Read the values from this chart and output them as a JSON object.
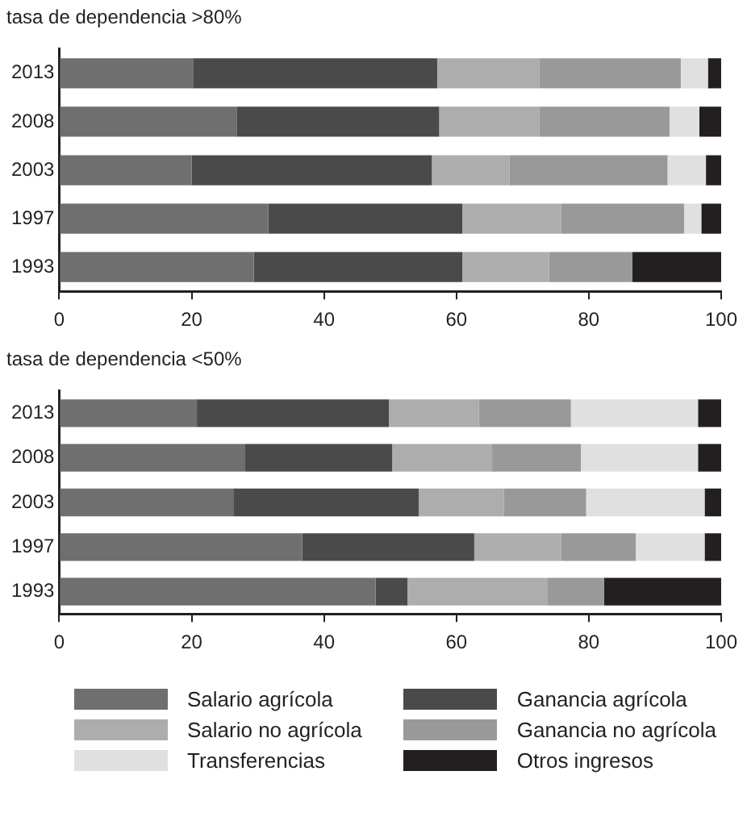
{
  "chart_data": [
    {
      "type": "bar",
      "orientation": "horizontal",
      "stacked": true,
      "title": "tasa de dependencia >80%",
      "categories": [
        "2013",
        "2008",
        "2003",
        "1997",
        "1993"
      ],
      "xlim": [
        0,
        100
      ],
      "xticks": [
        0,
        20,
        40,
        60,
        80,
        100
      ],
      "grid": false,
      "legend": false,
      "series": [
        {
          "color": "#6f6f6f",
          "values": [
            20.3,
            26.8,
            20.0,
            31.6,
            29.4
          ]
        },
        {
          "color": "#4a4a4a",
          "values": [
            36.8,
            30.6,
            36.3,
            29.3,
            31.5
          ]
        },
        {
          "color": "#adadad",
          "values": [
            15.4,
            15.1,
            11.7,
            14.9,
            13.1
          ]
        },
        {
          "color": "#999999",
          "values": [
            21.4,
            19.7,
            23.9,
            18.6,
            12.6
          ]
        },
        {
          "color": "#e0e0e0",
          "values": [
            4.1,
            4.5,
            5.8,
            2.6,
            null
          ]
        },
        {
          "color": "#231f20",
          "values": [
            2.0,
            3.3,
            2.3,
            3.0,
            13.4
          ]
        }
      ]
    },
    {
      "type": "bar",
      "orientation": "horizontal",
      "stacked": true,
      "title": "tasa de dependencia <50%",
      "categories": [
        "2013",
        "2008",
        "2003",
        "1997",
        "1993"
      ],
      "xlim": [
        0,
        100
      ],
      "xticks": [
        0,
        20,
        40,
        60,
        80,
        100
      ],
      "grid": false,
      "legend": "bottom",
      "series": [
        {
          "name": "Salario agrícola",
          "color": "#6f6f6f",
          "values": [
            20.8,
            28.1,
            26.3,
            36.7,
            47.8
          ]
        },
        {
          "name": "Ganancia agrícola",
          "color": "#4a4a4a",
          "values": [
            29.0,
            22.2,
            28.0,
            26.0,
            4.8
          ]
        },
        {
          "name": "Salario no agrícola",
          "color": "#adadad",
          "values": [
            13.6,
            15.1,
            12.9,
            13.1,
            21.2
          ]
        },
        {
          "name": "Ganancia no agrícola",
          "color": "#999999",
          "values": [
            13.9,
            13.4,
            12.4,
            11.3,
            8.5
          ]
        },
        {
          "name": "Transferencias",
          "color": "#e0e0e0",
          "values": [
            19.2,
            17.7,
            17.9,
            10.4,
            null
          ]
        },
        {
          "name": "Otros ingresos",
          "color": "#231f20",
          "values": [
            3.5,
            3.5,
            2.5,
            2.5,
            17.7
          ]
        }
      ]
    }
  ]
}
